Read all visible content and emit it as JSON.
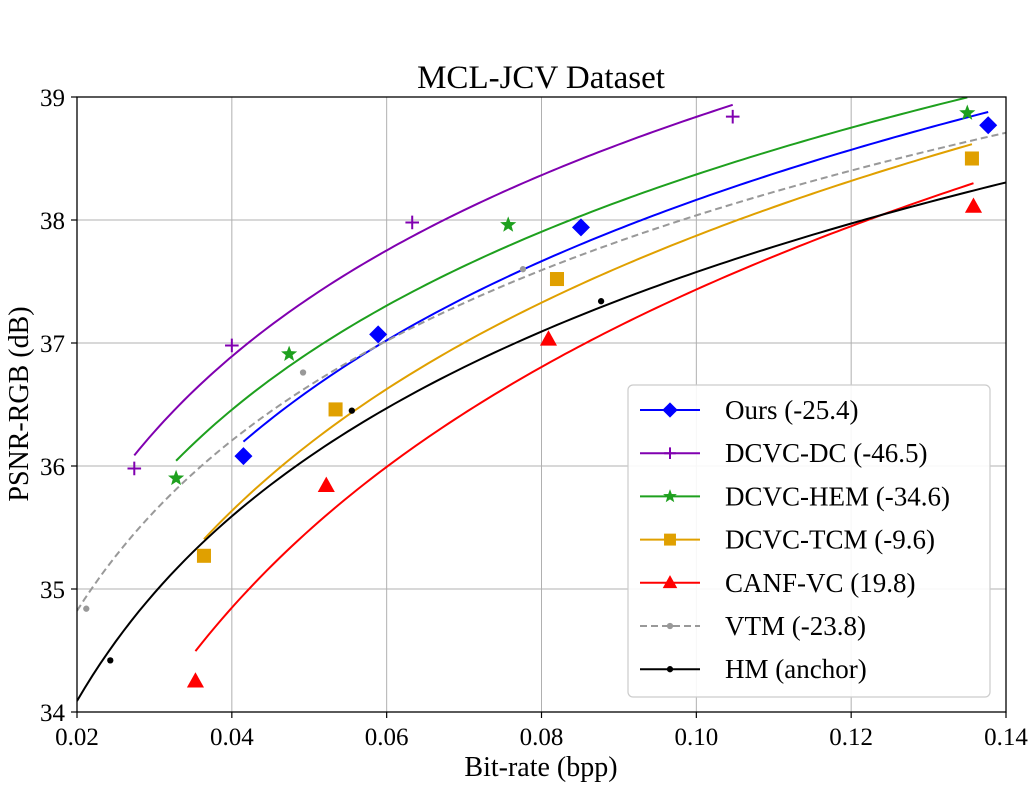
{
  "chart_data": {
    "type": "line",
    "title": "MCL-JCV Dataset",
    "xlabel": "Bit-rate (bpp)",
    "ylabel": "PSNR-RGB (dB)",
    "xlim": [
      0.02,
      0.14
    ],
    "ylim": [
      34,
      39
    ],
    "xticks": [
      0.02,
      0.04,
      0.06,
      0.08,
      0.1,
      0.12,
      0.14
    ],
    "xtick_labels": [
      "0.02",
      "0.04",
      "0.06",
      "0.08",
      "0.10",
      "0.12",
      "0.14"
    ],
    "yticks": [
      34,
      35,
      36,
      37,
      38,
      39
    ],
    "ytick_labels": [
      "34",
      "35",
      "36",
      "37",
      "38",
      "39"
    ],
    "grid": true,
    "legend_position": "lower-right",
    "series": [
      {
        "name": "Ours (-25.4)",
        "color": "#0000ff",
        "marker": "diamond",
        "dashed": false,
        "x": [
          0.0415,
          0.0589,
          0.0851,
          0.1377
        ],
        "y": [
          36.08,
          37.07,
          37.94,
          38.77
        ]
      },
      {
        "name": "DCVC-DC (-46.5)",
        "color": "#8000b0",
        "marker": "plus",
        "dashed": false,
        "x": [
          0.0274,
          0.04,
          0.0633,
          0.1047
        ],
        "y": [
          35.98,
          36.98,
          37.98,
          38.84
        ]
      },
      {
        "name": "DCVC-HEM (-34.6)",
        "color": "#1ea01e",
        "marker": "star",
        "dashed": false,
        "x": [
          0.0328,
          0.0474,
          0.0757,
          0.135
        ],
        "y": [
          35.9,
          36.91,
          37.96,
          38.87
        ]
      },
      {
        "name": "DCVC-TCM (-9.6)",
        "color": "#e0a000",
        "marker": "square",
        "dashed": false,
        "x": [
          0.0364,
          0.0534,
          0.082,
          0.1356
        ],
        "y": [
          35.27,
          36.46,
          37.52,
          38.5
        ]
      },
      {
        "name": "CANF-VC (19.8)",
        "color": "#ff0000",
        "marker": "triangle",
        "dashed": false,
        "x": [
          0.0353,
          0.0522,
          0.0809,
          0.1358
        ],
        "y": [
          34.25,
          35.84,
          37.03,
          38.11
        ]
      },
      {
        "name": "VTM (-23.8)",
        "color": "#999999",
        "marker": "dot",
        "dashed": true,
        "x": [
          0.0212,
          0.0492,
          0.0776,
          0.14
        ],
        "y": [
          34.84,
          36.76,
          37.6,
          38.6
        ]
      },
      {
        "name": "HM (anchor)",
        "color": "#000000",
        "marker": "dot",
        "dashed": false,
        "x": [
          0.0243,
          0.0555,
          0.0877,
          0.14
        ],
        "y": [
          34.42,
          36.45,
          37.34,
          38.2
        ]
      }
    ]
  }
}
